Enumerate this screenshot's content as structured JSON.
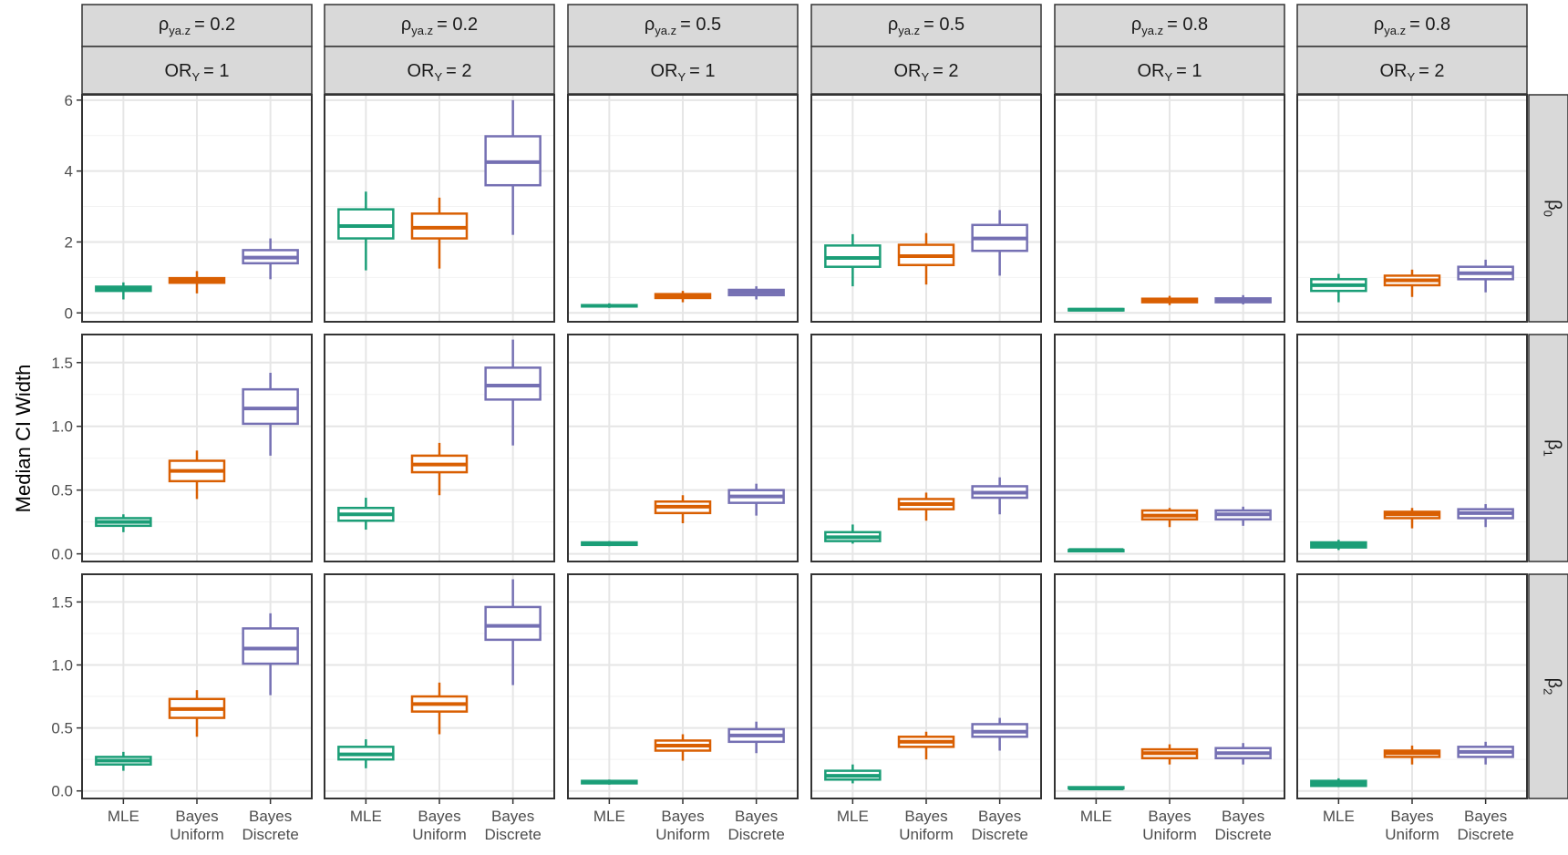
{
  "chart_data": {
    "type": "boxplot",
    "ylabel": "Median CI Width",
    "xlabel": "",
    "categories": [
      "MLE",
      "Bayes\nUniform",
      "Bayes\nDiscrete"
    ],
    "columns": [
      {
        "rho_sym": "ρ",
        "rho_sub": "ya.z",
        "rho_val": "= 0.2",
        "or_sym": "OR",
        "or_sub": "Y",
        "or_val": "= 1"
      },
      {
        "rho_sym": "ρ",
        "rho_sub": "ya.z",
        "rho_val": "= 0.2",
        "or_sym": "OR",
        "or_sub": "Y",
        "or_val": "= 2"
      },
      {
        "rho_sym": "ρ",
        "rho_sub": "ya.z",
        "rho_val": "= 0.5",
        "or_sym": "OR",
        "or_sub": "Y",
        "or_val": "= 1"
      },
      {
        "rho_sym": "ρ",
        "rho_sub": "ya.z",
        "rho_val": "= 0.5",
        "or_sym": "OR",
        "or_sub": "Y",
        "or_val": "= 2"
      },
      {
        "rho_sym": "ρ",
        "rho_sub": "ya.z",
        "rho_val": "= 0.8",
        "or_sym": "OR",
        "or_sub": "Y",
        "or_val": "= 1"
      },
      {
        "rho_sym": "ρ",
        "rho_sub": "ya.z",
        "rho_val": "= 0.8",
        "or_sym": "OR",
        "or_sub": "Y",
        "or_val": "= 2"
      }
    ],
    "rows": [
      {
        "sym": "β",
        "sub": "0",
        "ylim": [
          -0.25,
          6.15
        ],
        "ticks": [
          "0",
          "2",
          "4",
          "6"
        ],
        "tick_values": [
          0,
          2,
          4,
          6
        ],
        "minor": [
          1,
          3,
          5
        ]
      },
      {
        "sym": "β",
        "sub": "1",
        "ylim": [
          -0.06,
          1.72
        ],
        "ticks": [
          "0.0",
          "0.5",
          "1.0",
          "1.5"
        ],
        "tick_values": [
          0,
          0.5,
          1.0,
          1.5
        ],
        "minor": [
          0.25,
          0.75,
          1.25
        ]
      },
      {
        "sym": "β",
        "sub": "2",
        "ylim": [
          -0.06,
          1.72
        ],
        "ticks": [
          "0.0",
          "0.5",
          "1.0",
          "1.5"
        ],
        "tick_values": [
          0,
          0.5,
          1.0,
          1.5
        ],
        "minor": [
          0.25,
          0.75,
          1.25
        ]
      }
    ],
    "colors": [
      "#1b9e77",
      "#d95f02",
      "#7570b3"
    ],
    "boxes": [
      [
        [
          [
            0.38,
            0.62,
            0.68,
            0.74,
            0.86
          ],
          [
            0.55,
            0.85,
            0.92,
            0.98,
            1.18
          ],
          [
            0.95,
            1.4,
            1.56,
            1.77,
            2.1
          ]
        ],
        [
          [
            1.2,
            2.1,
            2.45,
            2.92,
            3.42
          ],
          [
            1.25,
            2.1,
            2.4,
            2.8,
            3.25
          ],
          [
            2.2,
            3.6,
            4.25,
            4.98,
            6.0
          ]
        ],
        [
          [
            0.14,
            0.18,
            0.2,
            0.22,
            0.27
          ],
          [
            0.3,
            0.42,
            0.48,
            0.53,
            0.62
          ],
          [
            0.38,
            0.5,
            0.58,
            0.65,
            0.75
          ]
        ],
        [
          [
            0.75,
            1.3,
            1.55,
            1.9,
            2.22
          ],
          [
            0.8,
            1.35,
            1.6,
            1.92,
            2.25
          ],
          [
            1.05,
            1.75,
            2.1,
            2.48,
            2.9
          ]
        ],
        [
          [
            0.05,
            0.07,
            0.09,
            0.11,
            0.14
          ],
          [
            0.22,
            0.3,
            0.36,
            0.4,
            0.48
          ],
          [
            0.24,
            0.3,
            0.36,
            0.41,
            0.5
          ]
        ],
        [
          [
            0.3,
            0.62,
            0.78,
            0.95,
            1.1
          ],
          [
            0.45,
            0.78,
            0.92,
            1.05,
            1.22
          ],
          [
            0.58,
            0.95,
            1.12,
            1.3,
            1.5
          ]
        ]
      ],
      [
        [
          [
            0.17,
            0.22,
            0.25,
            0.28,
            0.31
          ],
          [
            0.43,
            0.57,
            0.65,
            0.73,
            0.81
          ],
          [
            0.77,
            1.02,
            1.14,
            1.29,
            1.42
          ]
        ],
        [
          [
            0.19,
            0.26,
            0.31,
            0.36,
            0.44
          ],
          [
            0.46,
            0.64,
            0.7,
            0.77,
            0.87
          ],
          [
            0.85,
            1.21,
            1.32,
            1.46,
            1.68
          ]
        ],
        [
          [
            0.06,
            0.07,
            0.08,
            0.09,
            0.1
          ],
          [
            0.24,
            0.32,
            0.37,
            0.41,
            0.46
          ],
          [
            0.3,
            0.4,
            0.45,
            0.5,
            0.55
          ]
        ],
        [
          [
            0.08,
            0.1,
            0.13,
            0.17,
            0.23
          ],
          [
            0.26,
            0.35,
            0.39,
            0.43,
            0.48
          ],
          [
            0.31,
            0.44,
            0.48,
            0.53,
            0.6
          ]
        ],
        [
          [
            0.02,
            0.02,
            0.03,
            0.03,
            0.04
          ],
          [
            0.21,
            0.27,
            0.3,
            0.34,
            0.36
          ],
          [
            0.22,
            0.27,
            0.31,
            0.34,
            0.37
          ]
        ],
        [
          [
            0.03,
            0.05,
            0.07,
            0.09,
            0.11
          ],
          [
            0.2,
            0.28,
            0.31,
            0.33,
            0.36
          ],
          [
            0.21,
            0.28,
            0.32,
            0.35,
            0.39
          ]
        ]
      ],
      [
        [
          [
            0.16,
            0.21,
            0.24,
            0.27,
            0.31
          ],
          [
            0.43,
            0.58,
            0.65,
            0.73,
            0.8
          ],
          [
            0.76,
            1.01,
            1.13,
            1.29,
            1.41
          ]
        ],
        [
          [
            0.18,
            0.25,
            0.29,
            0.35,
            0.41
          ],
          [
            0.45,
            0.63,
            0.69,
            0.75,
            0.86
          ],
          [
            0.84,
            1.2,
            1.31,
            1.46,
            1.68
          ]
        ],
        [
          [
            0.05,
            0.06,
            0.07,
            0.08,
            0.09
          ],
          [
            0.24,
            0.32,
            0.36,
            0.4,
            0.45
          ],
          [
            0.3,
            0.39,
            0.44,
            0.49,
            0.55
          ]
        ],
        [
          [
            0.06,
            0.09,
            0.12,
            0.16,
            0.21
          ],
          [
            0.25,
            0.35,
            0.39,
            0.43,
            0.47
          ],
          [
            0.32,
            0.43,
            0.47,
            0.53,
            0.58
          ]
        ],
        [
          [
            0.01,
            0.02,
            0.02,
            0.03,
            0.03
          ],
          [
            0.21,
            0.26,
            0.3,
            0.33,
            0.37
          ],
          [
            0.21,
            0.26,
            0.3,
            0.34,
            0.38
          ]
        ],
        [
          [
            0.03,
            0.04,
            0.06,
            0.08,
            0.1
          ],
          [
            0.21,
            0.27,
            0.3,
            0.32,
            0.36
          ],
          [
            0.21,
            0.27,
            0.31,
            0.35,
            0.39
          ]
        ]
      ]
    ]
  }
}
